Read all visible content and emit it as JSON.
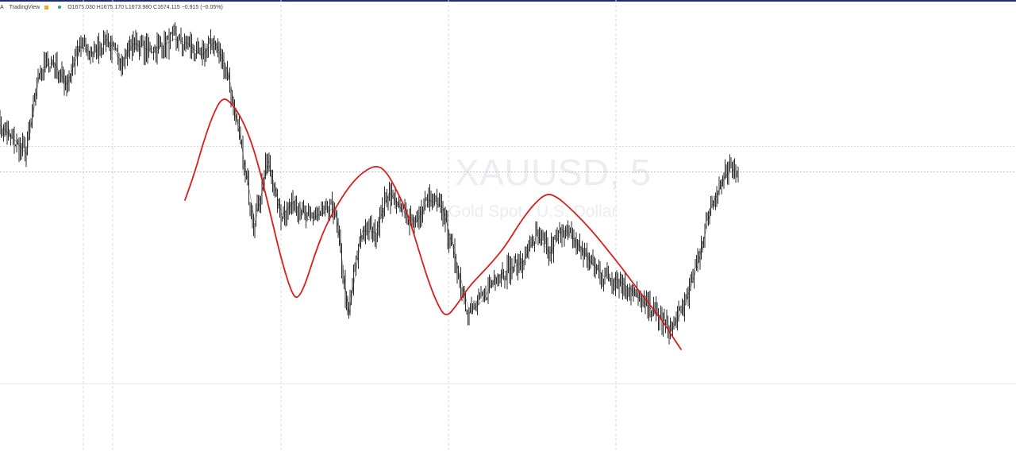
{
  "header": {
    "symbol_prefix": "A",
    "source": "TradingView",
    "status_color": "#f5a623",
    "dot_color": "#26a69a",
    "ohlc_text": "O1675.030 H1675.170 L1673.980 C1674.115 −0.915 (−0.05%)"
  },
  "watermark": {
    "symbol": "XAUUSD, 5",
    "description": "Gold Spot / U.S. Dollar"
  },
  "colors": {
    "candle": "#2b2b2b",
    "drawing": "#d81e1e",
    "grid": "#cfd8dc",
    "background": "#ffffff"
  },
  "chart_data": {
    "type": "line",
    "title": "",
    "xlabel": "",
    "ylabel": "",
    "ylim": [
      1660,
      1682
    ],
    "grid": true,
    "series": [
      {
        "values": [
          1674.9,
          1674.0,
          1673.0,
          1678.5,
          1679.0,
          1677.5,
          1680.0,
          1679.5,
          1680.5,
          1679.0,
          1680.2,
          1679.8,
          1680.0,
          1680.5,
          1680.2,
          1679.4,
          1680.3,
          1678.4,
          1673.5,
          1668.5,
          1672.5,
          1669.0,
          1670.0,
          1668.7,
          1669.1,
          1669.5,
          1662.5,
          1668.0,
          1667.9,
          1670.5,
          1669.3,
          1668.5,
          1670.0,
          1669.5,
          1666.0,
          1662.6,
          1663.5,
          1665.0,
          1665.5,
          1666.0,
          1667.7,
          1666.5,
          1668.2,
          1667.2,
          1666.0,
          1665.0,
          1664.8,
          1664.2,
          1663.3,
          1662.5,
          1661.5,
          1663.0,
          1665.8,
          1669.5,
          1671.5,
          1672.2
        ]
      }
    ]
  }
}
